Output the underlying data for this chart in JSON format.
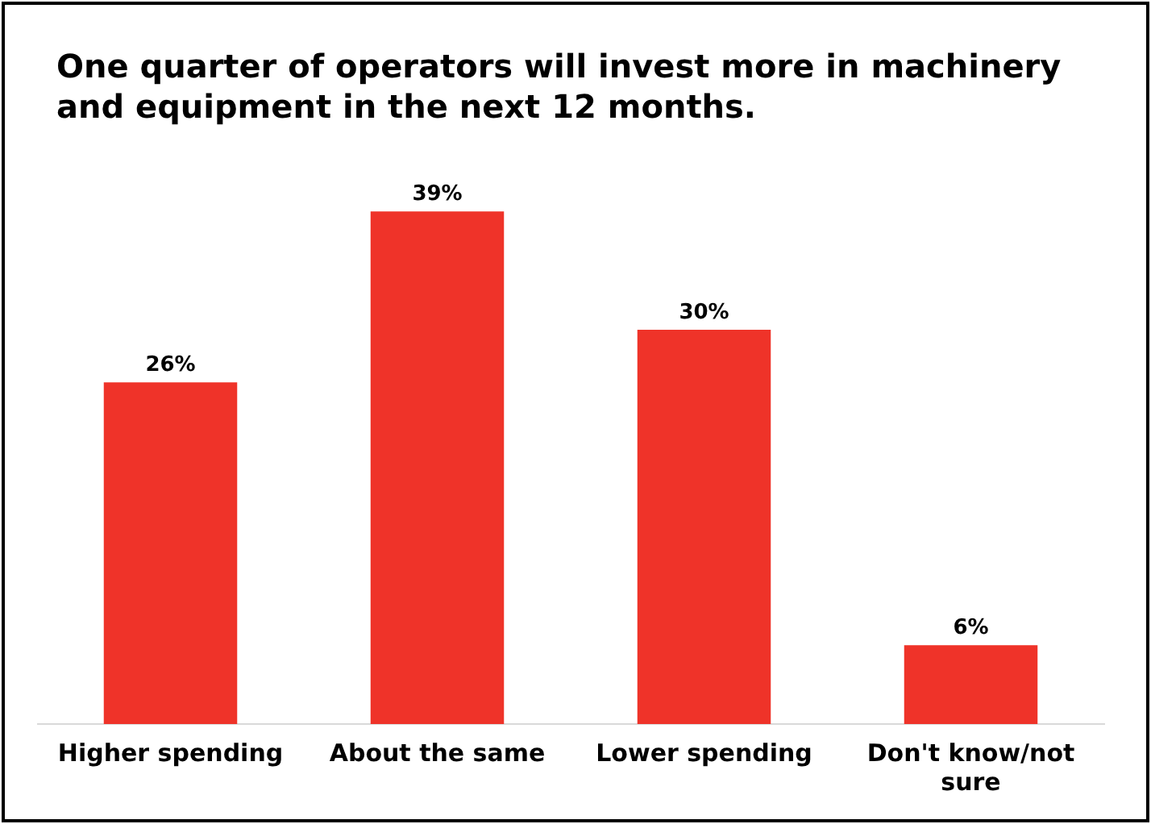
{
  "chart_data": {
    "type": "bar",
    "title": "One quarter of operators will invest more in machinery and equipment in the next 12 months.",
    "categories": [
      "Higher spending",
      "About the same",
      "Lower spending",
      "Don't know/not sure"
    ],
    "values": [
      26,
      39,
      30,
      6
    ],
    "color": "#ef3329",
    "value_labels": [
      "26%",
      "39%",
      "30%",
      "6%"
    ],
    "grid": false,
    "legend": false
  }
}
